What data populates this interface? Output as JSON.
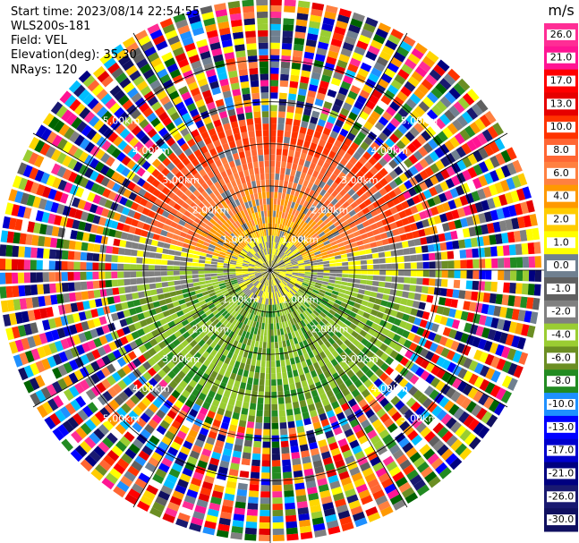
{
  "header": {
    "start_time": "Start time: 2023/08/14 22:54:55",
    "site": "WLS200s-181",
    "field": "Field: VEL",
    "elevation": "Elevation(deg): 35.30",
    "nrays": "NRays: 120"
  },
  "chart_data": {
    "type": "heatmap",
    "projection": "polar PPI",
    "field": "VEL",
    "unit": "m/s",
    "nrays": 120,
    "range_rings": [
      "1.00km",
      "2.00km",
      "3.00km",
      "4.00km",
      "5.00km"
    ],
    "range_ring_km": [
      1,
      2,
      3,
      4,
      5
    ],
    "max_range_km": 6.5,
    "colorbar": {
      "ticks": [
        "26.0",
        "21.0",
        "17.0",
        "13.0",
        "10.0",
        "8.0",
        "6.0",
        "4.0",
        "2.0",
        "1.0",
        "0.0",
        "-1.0",
        "-2.0",
        "-4.0",
        "-6.0",
        "-8.0",
        "-10.0",
        "-13.0",
        "-17.0",
        "-21.0",
        "-26.0",
        "-30.0"
      ],
      "colors": [
        "#ff2d95",
        "#ff1493",
        "#ff0000",
        "#e60000",
        "#ff3300",
        "#ff6633",
        "#ff8040",
        "#ff9900",
        "#ffcc00",
        "#ffff00",
        "#708090",
        "#606060",
        "#808080",
        "#9acd32",
        "#6b8e23",
        "#228b22",
        "#1e90ff",
        "#0000ff",
        "#0000cd",
        "#000080",
        "#191970",
        "#101060"
      ]
    },
    "sector_pattern": "north half positive (approaching yellow to red), south half negative (receding green), noisy far ranges"
  }
}
